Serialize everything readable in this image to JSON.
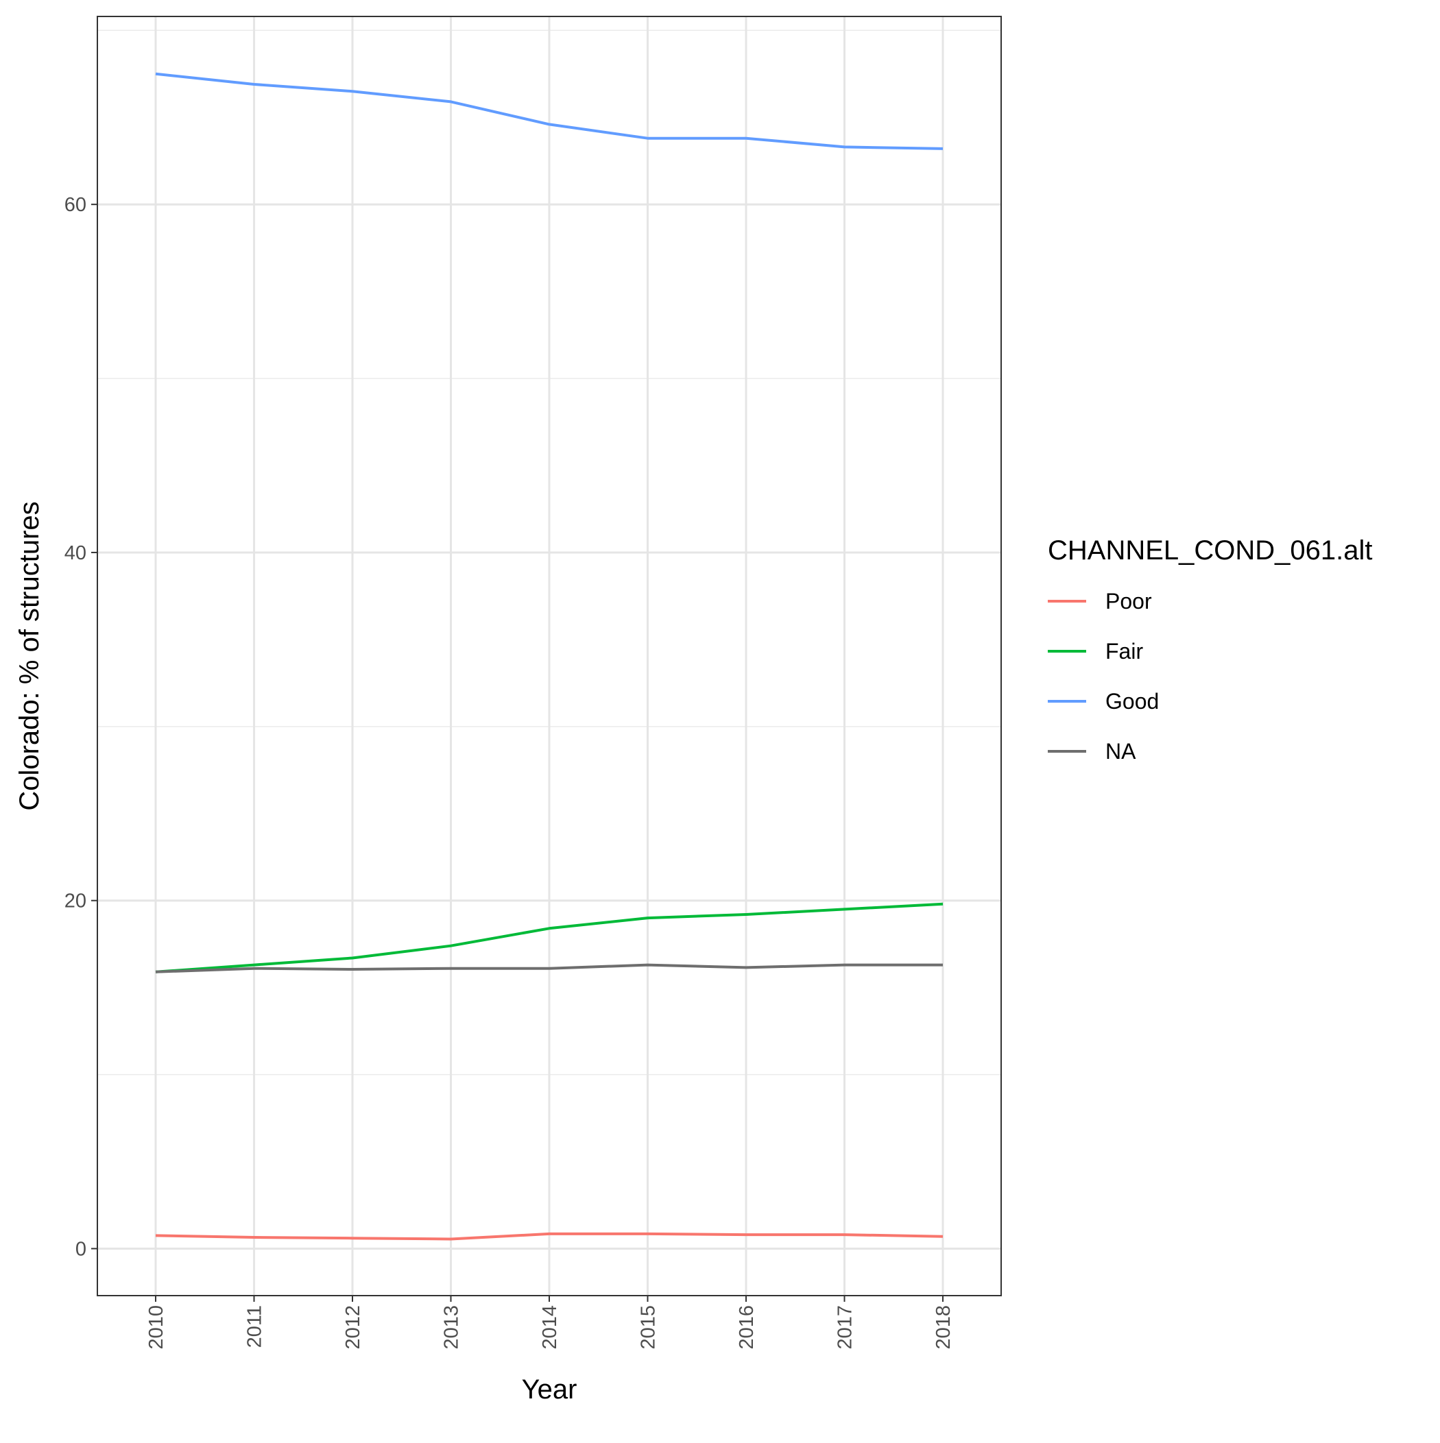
{
  "chart_data": {
    "type": "line",
    "title": "",
    "xlabel": "Year",
    "ylabel": "Colorado: % of structures",
    "x": [
      "2010",
      "2011",
      "2012",
      "2013",
      "2014",
      "2015",
      "2016",
      "2017",
      "2018"
    ],
    "ylim": [
      -2.7,
      70.8
    ],
    "y_ticks": [
      "0",
      "20",
      "40",
      "60"
    ],
    "grid": true,
    "legend": {
      "title": "CHANNEL_COND_061.alt",
      "position": "right"
    },
    "series": [
      {
        "name": "Poor",
        "color": "#F8766D",
        "values": [
          0.75,
          0.65,
          0.6,
          0.55,
          0.85,
          0.85,
          0.8,
          0.8,
          0.7
        ]
      },
      {
        "name": "Fair",
        "color": "#00BA38",
        "values": [
          15.9,
          16.3,
          16.7,
          17.4,
          18.4,
          19.0,
          19.2,
          19.5,
          19.8
        ]
      },
      {
        "name": "Good",
        "color": "#619CFF",
        "values": [
          67.5,
          66.9,
          66.5,
          65.9,
          64.6,
          63.8,
          63.8,
          63.3,
          63.2
        ]
      },
      {
        "name": "NA",
        "color": "#6E6E6E",
        "values": [
          15.9,
          16.1,
          16.05,
          16.1,
          16.1,
          16.3,
          16.15,
          16.3,
          16.3
        ]
      }
    ]
  }
}
